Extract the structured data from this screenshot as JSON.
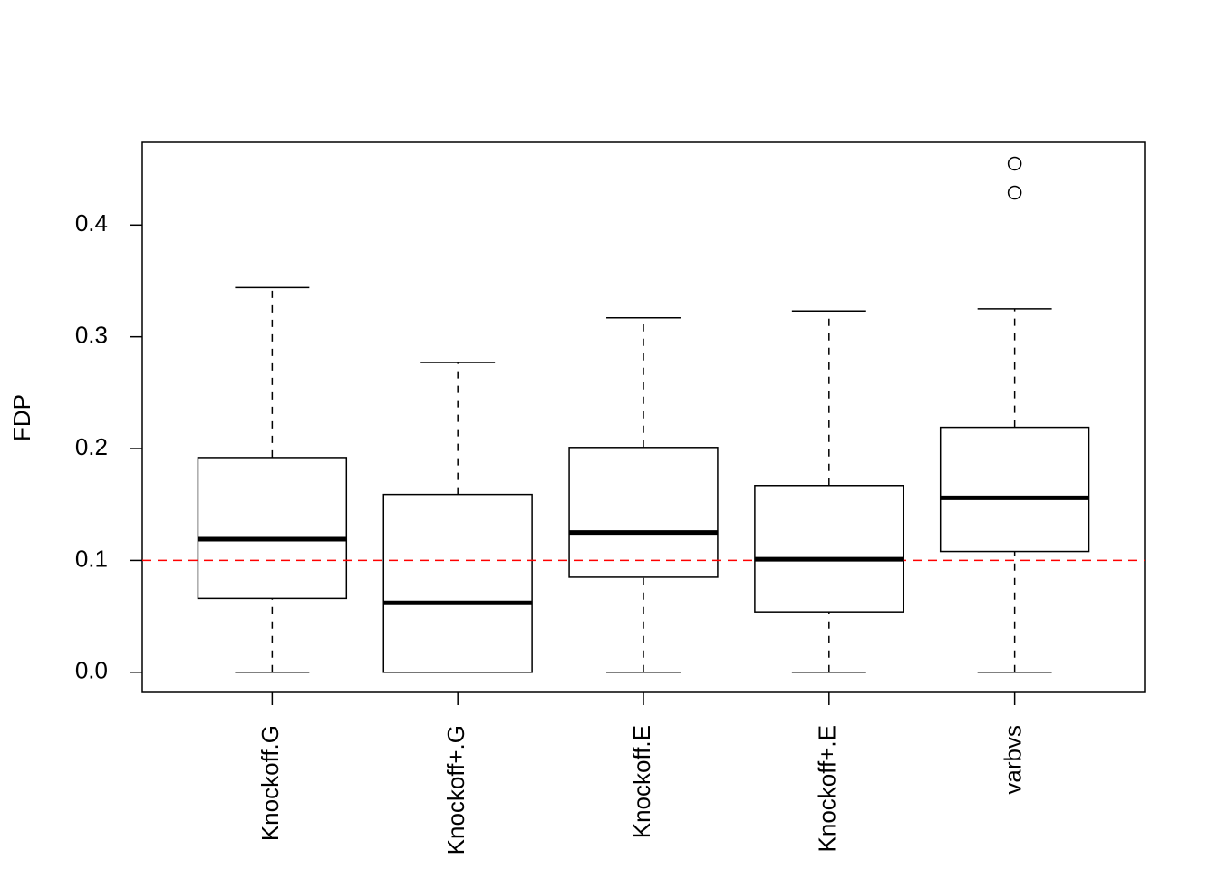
{
  "chart_data": {
    "type": "box",
    "y_label": "FDP",
    "categories": [
      "Knockoff.G",
      "Knockoff+.G",
      "Knockoff.E",
      "Knockoff+.E",
      "varbvs"
    ],
    "boxes": [
      {
        "whisker_low": 0,
        "q1": 0.066,
        "median": 0.119,
        "q3": 0.192,
        "whisker_high": 0.344,
        "outliers": []
      },
      {
        "whisker_low": 0,
        "q1": 0,
        "median": 0.062,
        "q3": 0.159,
        "whisker_high": 0.277,
        "outliers": []
      },
      {
        "whisker_low": 0,
        "q1": 0.085,
        "median": 0.125,
        "q3": 0.201,
        "whisker_high": 0.317,
        "outliers": []
      },
      {
        "whisker_low": 0,
        "q1": 0.054,
        "median": 0.101,
        "q3": 0.167,
        "whisker_high": 0.323,
        "outliers": []
      },
      {
        "whisker_low": 0,
        "q1": 0.108,
        "median": 0.156,
        "q3": 0.219,
        "whisker_high": 0.325,
        "outliers": [
          0.429,
          0.455
        ]
      }
    ],
    "color": "#000000",
    "reference_line": 0.1,
    "reference_color": "#ff0000",
    "ylim": [
      -0.018,
      0.474
    ],
    "yticks": [
      {
        "value": 0,
        "label": "0.0"
      },
      0.1,
      0.2,
      0.3,
      0.4
    ]
  }
}
